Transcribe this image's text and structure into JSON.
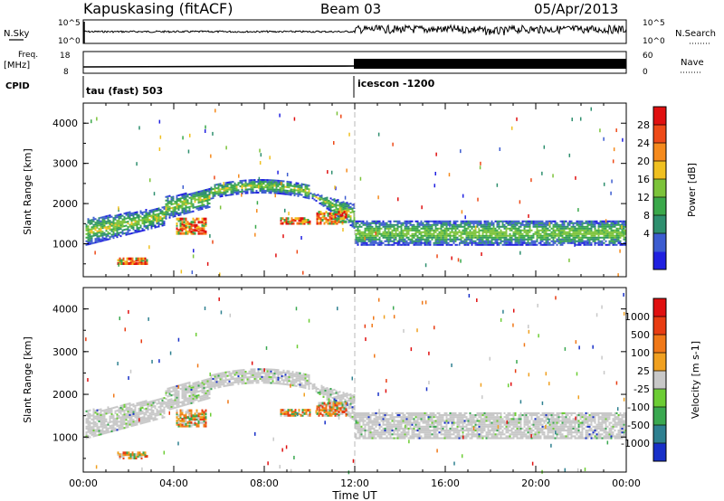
{
  "header": {
    "station": "Kapuskasing (fitACF)",
    "beam": "Beam 03",
    "date": "05/Apr/2013"
  },
  "strips": {
    "nsky_label": "N.Sky",
    "nsearch_label": "N.Search",
    "freq_label_1": "Freq.",
    "freq_label_2": "[MHz]",
    "nave_label": "Nave",
    "cpid_label": "CPID",
    "left_ticks_top": [
      "10^5",
      "10^0"
    ],
    "right_ticks_top": [
      "10^5",
      "10^0"
    ],
    "left_ticks_freq": [
      "18",
      "8"
    ],
    "right_ticks_nave": [
      "60",
      "0"
    ],
    "cpid_1": "tau (fast) 503",
    "cpid_2": "icescon -1200"
  },
  "chart_data": [
    {
      "type": "heatmap",
      "name": "power",
      "ylabel": "Slant Range [km]",
      "ylim": [
        180,
        4500
      ],
      "y_ticks": [
        "1000",
        "2000",
        "3000",
        "4000"
      ],
      "x_ticks": [
        "00:00",
        "04:00",
        "08:00",
        "12:00",
        "16:00",
        "20:00",
        "00:00"
      ],
      "colorbar": {
        "label": "Power [dB]",
        "ticks": [
          "28",
          "24",
          "20",
          "16",
          "12",
          "8",
          "4"
        ],
        "colors": [
          "#2020e0",
          "#3c5cd0",
          "#2e8f6e",
          "#3aa84a",
          "#7cc33a",
          "#f0c020",
          "#f58a1c",
          "#ee4a18",
          "#e01010"
        ]
      },
      "echo_bands": [
        {
          "t0": 0.1,
          "t1": 3.6,
          "r0": 950,
          "r1": 1600
        },
        {
          "t0": 3.6,
          "t1": 5.6,
          "r0": 1600,
          "r1": 2150
        },
        {
          "t0": 5.6,
          "t1": 10.0,
          "r0": 2100,
          "r1": 2450
        },
        {
          "t0": 10.0,
          "t1": 12.0,
          "r0": 1350,
          "r1": 2150
        },
        {
          "t0": 12.0,
          "t1": 24.0,
          "r0": 950,
          "r1": 1550
        }
      ]
    },
    {
      "type": "heatmap",
      "name": "velocity",
      "ylabel": "Slant Range [km]",
      "ylim": [
        180,
        4500
      ],
      "y_ticks": [
        "1000",
        "2000",
        "3000",
        "4000"
      ],
      "x_ticks": [
        "00:00",
        "04:00",
        "08:00",
        "12:00",
        "16:00",
        "20:00",
        "00:00"
      ],
      "xlabel": "Time UT",
      "colorbar": {
        "label": "Velocity [m s-1]",
        "ticks": [
          "1000",
          "500",
          "100",
          "25",
          "-25",
          "-100",
          "-500",
          "-1000"
        ],
        "colors": [
          "#1830c8",
          "#2e8090",
          "#3aa850",
          "#6ccd34",
          "#c8c8c8",
          "#f0a020",
          "#f07818",
          "#e83c12",
          "#e01010"
        ]
      }
    }
  ]
}
